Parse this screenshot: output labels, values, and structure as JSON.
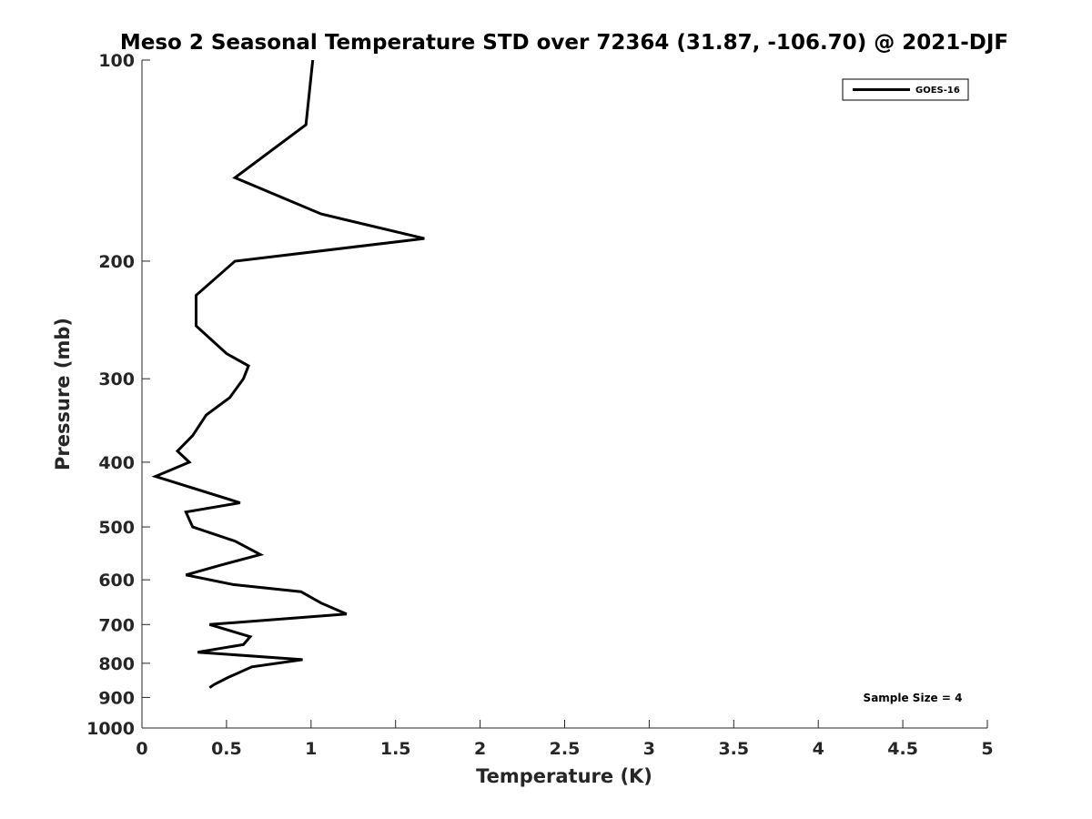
{
  "chart_data": {
    "type": "line",
    "title": "Meso 2 Seasonal Temperature STD over 72364 (31.87, -106.70) @ 2021-DJF",
    "xlabel": "Temperature (K)",
    "ylabel": "Pressure (mb)",
    "xlim": [
      0,
      5
    ],
    "ylim": [
      100,
      1000
    ],
    "y_scale": "log",
    "y_reversed": true,
    "x_ticks": [
      "0",
      "0.5",
      "1",
      "1.5",
      "2",
      "2.5",
      "3",
      "3.5",
      "4",
      "4.5",
      "5"
    ],
    "x_tick_values": [
      0,
      0.5,
      1,
      1.5,
      2,
      2.5,
      3,
      3.5,
      4,
      4.5,
      5
    ],
    "y_ticks": [
      "100",
      "200",
      "300",
      "400",
      "500",
      "600",
      "700",
      "800",
      "900",
      "1000"
    ],
    "y_tick_values": [
      100,
      200,
      300,
      400,
      500,
      600,
      700,
      800,
      900,
      1000
    ],
    "grid": false,
    "legend_position": "top-right",
    "series": [
      {
        "name": "GOES-16",
        "color": "#000000",
        "points": [
          [
            1.01,
            100
          ],
          [
            0.97,
            125
          ],
          [
            0.55,
            150
          ],
          [
            1.06,
            170
          ],
          [
            1.67,
            185
          ],
          [
            0.55,
            200
          ],
          [
            0.32,
            225
          ],
          [
            0.32,
            250
          ],
          [
            0.5,
            275
          ],
          [
            0.63,
            287
          ],
          [
            0.6,
            300
          ],
          [
            0.52,
            320
          ],
          [
            0.38,
            340
          ],
          [
            0.3,
            365
          ],
          [
            0.21,
            385
          ],
          [
            0.28,
            400
          ],
          [
            0.08,
            420
          ],
          [
            0.58,
            460
          ],
          [
            0.26,
            475
          ],
          [
            0.3,
            500
          ],
          [
            0.55,
            525
          ],
          [
            0.7,
            550
          ],
          [
            0.47,
            570
          ],
          [
            0.26,
            590
          ],
          [
            0.54,
            610
          ],
          [
            0.94,
            625
          ],
          [
            1.06,
            650
          ],
          [
            1.21,
            675
          ],
          [
            0.4,
            700
          ],
          [
            0.64,
            730
          ],
          [
            0.6,
            750
          ],
          [
            0.33,
            770
          ],
          [
            0.95,
            790
          ],
          [
            0.65,
            810
          ],
          [
            0.51,
            840
          ],
          [
            0.43,
            860
          ],
          [
            0.4,
            870
          ]
        ]
      }
    ],
    "annotations": [
      "Sample Size = 4"
    ]
  }
}
